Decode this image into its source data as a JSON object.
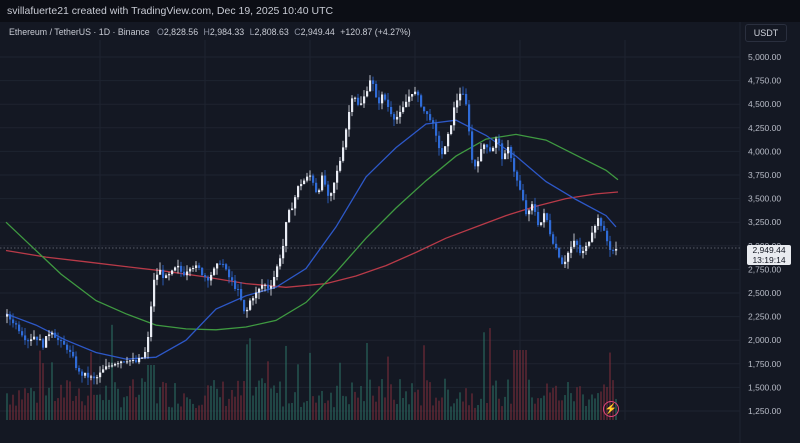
{
  "header": {
    "credit": "svillafuerte21 created with TradingView.com, Dec 19, 2025 10:40 UTC"
  },
  "legend": {
    "symbol": "Ethereum / TetherUS · 1D · Binance",
    "open_label": "O",
    "open": "2,828.56",
    "high_label": "H",
    "high": "2,984.33",
    "low_label": "L",
    "low": "2,808.63",
    "close_label": "C",
    "close": "2,949.44",
    "change": "+120.87 (+4.27%)"
  },
  "axis": {
    "unit": "USDT"
  },
  "price_badge": {
    "price": "2,949.44",
    "countdown": "13:19:14"
  },
  "colors": {
    "background": "#141823",
    "candle": "#2f6bd6",
    "candle_up": "#e9ecf4",
    "ma_fast": "#2d58c8",
    "ma_mid": "#3f9a41",
    "ma_slow": "#b83a48",
    "volume_up": "#2a6e63",
    "volume_down": "#7a2e3a",
    "grid": "#1e2330"
  },
  "icons": {
    "alert": "lightning-bolt-icon"
  },
  "chart_data": {
    "type": "candlestick",
    "symbol": "Ethereum / TetherUS",
    "interval": "1D",
    "exchange": "Binance",
    "ylim": [
      1150,
      5250
    ],
    "y_ticks": [
      "5,000.00",
      "4,750.00",
      "4,500.00",
      "4,250.00",
      "4,000.00",
      "3,750.00",
      "3,500.00",
      "3,250.00",
      "3,000.00",
      "2,750.00",
      "2,500.00",
      "2,250.00",
      "2,000.00",
      "1,750.00",
      "1,500.00",
      "1,250.00"
    ],
    "y_tick_values": [
      5000,
      4750,
      4500,
      4250,
      4000,
      3750,
      3500,
      3250,
      3000,
      2750,
      2500,
      2250,
      2000,
      1750,
      1500,
      1250
    ],
    "grid": true,
    "close_path": [
      [
        0,
        2250
      ],
      [
        6,
        2200
      ],
      [
        12,
        2120
      ],
      [
        20,
        2000
      ],
      [
        28,
        2050
      ],
      [
        36,
        1950
      ],
      [
        44,
        2120
      ],
      [
        52,
        1980
      ],
      [
        60,
        1920
      ],
      [
        66,
        1800
      ],
      [
        72,
        1650
      ],
      [
        80,
        1620
      ],
      [
        88,
        1580
      ],
      [
        96,
        1680
      ],
      [
        104,
        1750
      ],
      [
        112,
        1780
      ],
      [
        120,
        1800
      ],
      [
        128,
        1760
      ],
      [
        134,
        1800
      ],
      [
        140,
        1900
      ],
      [
        146,
        2600
      ],
      [
        152,
        2750
      ],
      [
        158,
        2650
      ],
      [
        164,
        2700
      ],
      [
        170,
        2780
      ],
      [
        176,
        2700
      ],
      [
        184,
        2800
      ],
      [
        192,
        2750
      ],
      [
        200,
        2650
      ],
      [
        208,
        2750
      ],
      [
        214,
        2850
      ],
      [
        220,
        2700
      ],
      [
        226,
        2600
      ],
      [
        232,
        2500
      ],
      [
        238,
        2250
      ],
      [
        244,
        2450
      ],
      [
        250,
        2500
      ],
      [
        256,
        2600
      ],
      [
        262,
        2550
      ],
      [
        268,
        2700
      ],
      [
        272,
        2850
      ],
      [
        276,
        3000
      ],
      [
        280,
        3300
      ],
      [
        286,
        3450
      ],
      [
        292,
        3650
      ],
      [
        298,
        3700
      ],
      [
        304,
        3750
      ],
      [
        310,
        3550
      ],
      [
        316,
        3750
      ],
      [
        322,
        3450
      ],
      [
        328,
        3700
      ],
      [
        334,
        3950
      ],
      [
        340,
        4300
      ],
      [
        346,
        4650
      ],
      [
        352,
        4450
      ],
      [
        358,
        4600
      ],
      [
        364,
        4800
      ],
      [
        370,
        4500
      ],
      [
        376,
        4600
      ],
      [
        382,
        4450
      ],
      [
        388,
        4350
      ],
      [
        394,
        4400
      ],
      [
        400,
        4550
      ],
      [
        406,
        4650
      ],
      [
        412,
        4550
      ],
      [
        418,
        4400
      ],
      [
        424,
        4350
      ],
      [
        430,
        4100
      ],
      [
        436,
        3950
      ],
      [
        442,
        4200
      ],
      [
        448,
        4500
      ],
      [
        454,
        4650
      ],
      [
        460,
        4450
      ],
      [
        466,
        3800
      ],
      [
        472,
        3950
      ],
      [
        478,
        4100
      ],
      [
        484,
        4000
      ],
      [
        490,
        4150
      ],
      [
        496,
        3900
      ],
      [
        502,
        4050
      ],
      [
        508,
        3750
      ],
      [
        514,
        3550
      ],
      [
        520,
        3300
      ],
      [
        526,
        3450
      ],
      [
        532,
        3200
      ],
      [
        538,
        3350
      ],
      [
        544,
        3100
      ],
      [
        550,
        2950
      ],
      [
        556,
        2800
      ],
      [
        562,
        2950
      ],
      [
        568,
        3050
      ],
      [
        574,
        2900
      ],
      [
        580,
        3000
      ],
      [
        586,
        3200
      ],
      [
        592,
        3300
      ],
      [
        598,
        3100
      ],
      [
        604,
        2950
      ],
      [
        610,
        2950
      ]
    ],
    "ma_fast_path": [
      [
        0,
        2280
      ],
      [
        30,
        2160
      ],
      [
        60,
        2000
      ],
      [
        90,
        1870
      ],
      [
        120,
        1800
      ],
      [
        150,
        1820
      ],
      [
        180,
        2000
      ],
      [
        210,
        2330
      ],
      [
        240,
        2470
      ],
      [
        270,
        2560
      ],
      [
        300,
        2760
      ],
      [
        330,
        3200
      ],
      [
        360,
        3730
      ],
      [
        390,
        4040
      ],
      [
        420,
        4290
      ],
      [
        450,
        4330
      ],
      [
        480,
        4170
      ],
      [
        510,
        3950
      ],
      [
        540,
        3680
      ],
      [
        570,
        3490
      ],
      [
        600,
        3320
      ],
      [
        610,
        3200
      ]
    ],
    "ma_mid_path": [
      [
        0,
        3250
      ],
      [
        25,
        3000
      ],
      [
        55,
        2700
      ],
      [
        90,
        2420
      ],
      [
        120,
        2280
      ],
      [
        150,
        2160
      ],
      [
        180,
        2120
      ],
      [
        210,
        2110
      ],
      [
        240,
        2140
      ],
      [
        270,
        2210
      ],
      [
        300,
        2400
      ],
      [
        330,
        2720
      ],
      [
        360,
        3080
      ],
      [
        390,
        3400
      ],
      [
        420,
        3690
      ],
      [
        450,
        3950
      ],
      [
        480,
        4130
      ],
      [
        510,
        4180
      ],
      [
        540,
        4120
      ],
      [
        570,
        3960
      ],
      [
        600,
        3800
      ],
      [
        612,
        3700
      ]
    ],
    "ma_slow_path": [
      [
        0,
        2950
      ],
      [
        40,
        2880
      ],
      [
        80,
        2830
      ],
      [
        120,
        2780
      ],
      [
        160,
        2730
      ],
      [
        200,
        2670
      ],
      [
        240,
        2600
      ],
      [
        280,
        2560
      ],
      [
        320,
        2600
      ],
      [
        350,
        2680
      ],
      [
        380,
        2790
      ],
      [
        410,
        2930
      ],
      [
        440,
        3080
      ],
      [
        470,
        3200
      ],
      [
        500,
        3320
      ],
      [
        530,
        3420
      ],
      [
        560,
        3500
      ],
      [
        590,
        3550
      ],
      [
        612,
        3570
      ]
    ],
    "volume_note": "volume histogram, unscaled"
  }
}
